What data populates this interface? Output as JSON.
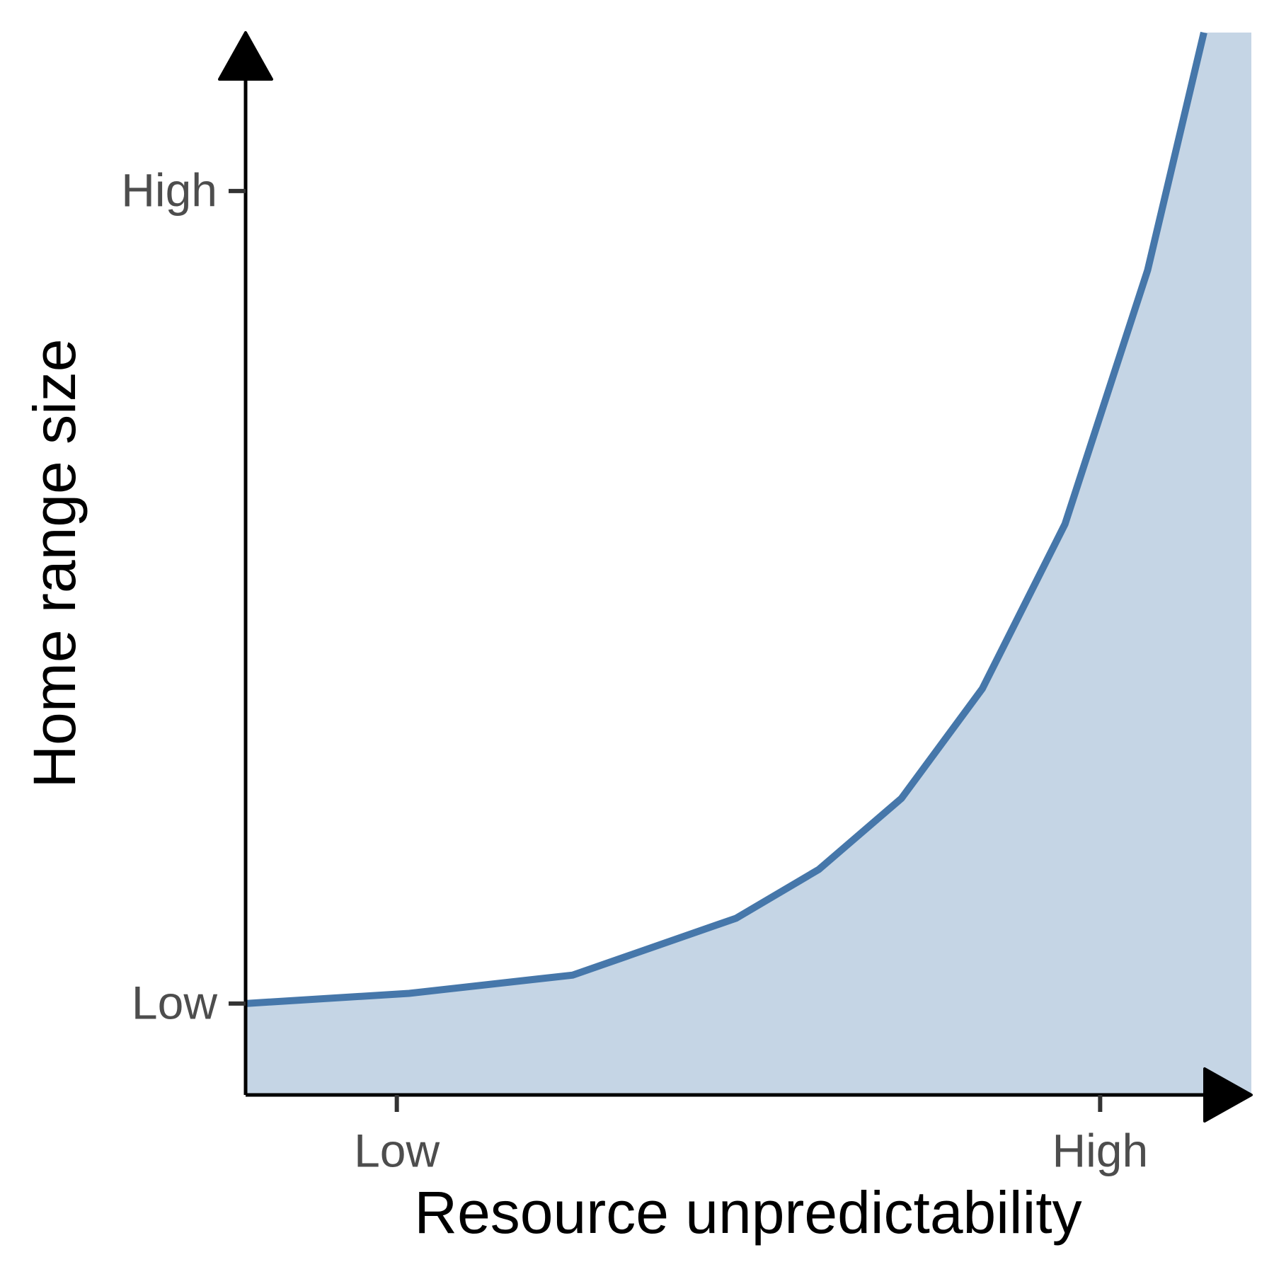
{
  "chart_data": {
    "type": "area",
    "x_label": "Resource unpredictability",
    "y_label": "Home range size",
    "x": [
      0.14,
      1.07,
      2.0,
      2.93,
      3.4,
      3.87,
      4.33,
      4.8,
      5.27,
      5.59
    ],
    "series": [
      {
        "color": "#4677aa",
        "fill": "#c5d5e5",
        "values": [
          1.0,
          1.05,
          1.14,
          1.42,
          1.66,
          2.01,
          2.55,
          3.36,
          4.61,
          5.78
        ]
      }
    ],
    "xlim": [
      0.14,
      5.86
    ],
    "ylim": [
      0.55,
      5.78
    ],
    "xticks": [
      {
        "value": 1,
        "label": "Low"
      },
      {
        "value": 5,
        "label": "High"
      }
    ],
    "yticks": [
      {
        "value": 1,
        "label": "Low"
      },
      {
        "value": 5,
        "label": "High"
      }
    ],
    "grid": false
  }
}
